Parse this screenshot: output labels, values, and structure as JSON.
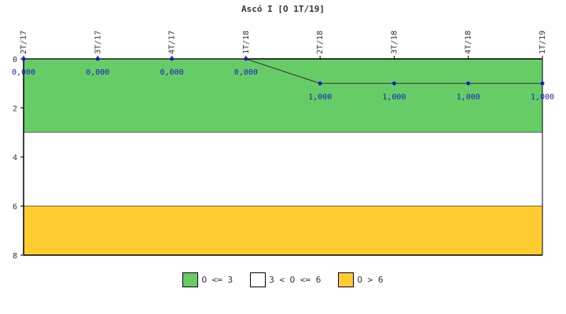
{
  "chart_data": {
    "type": "line",
    "title": "Ascó I [O 1T/19]",
    "categories": [
      "2T/17",
      "3T/17",
      "4T/17",
      "1T/18",
      "2T/18",
      "3T/18",
      "4T/18",
      "1T/19"
    ],
    "series": [
      {
        "values": [
          0,
          0,
          0,
          0,
          1,
          1,
          1,
          1
        ],
        "labels": [
          "0,000",
          "0,000",
          "0,000",
          "0,000",
          "1,000",
          "1,000",
          "1,000",
          "1,000"
        ],
        "color": "#1a1acc"
      }
    ],
    "y_axis": {
      "min": 0,
      "max": 8,
      "inverted": true,
      "ticks": [
        0,
        2,
        4,
        6,
        8
      ]
    },
    "bands": [
      {
        "label": "O <= 3",
        "from": 0,
        "to": 3,
        "color": "#66cc66"
      },
      {
        "label": "3 < O <= 6",
        "from": 3,
        "to": 6,
        "color": "#ffffff"
      },
      {
        "label": "O > 6",
        "from": 6,
        "to": 8,
        "color": "#ffcc33"
      }
    ],
    "legend_position": "bottom",
    "grid": false
  }
}
